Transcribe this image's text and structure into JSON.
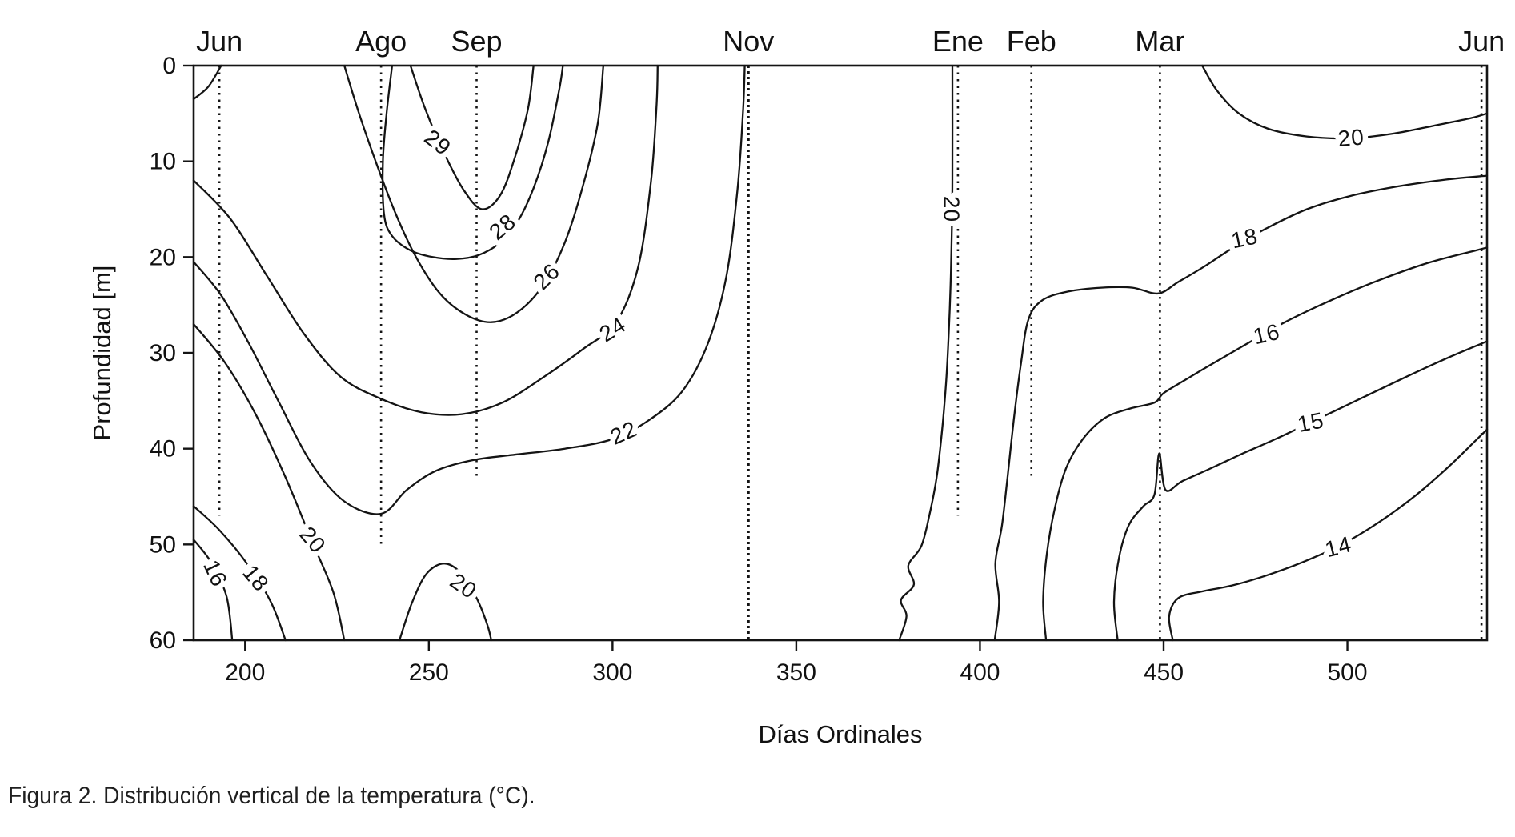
{
  "figure": {
    "caption": "Figura 2. Distribución vertical de la temperatura (°C)."
  },
  "chart_data": {
    "type": "contour",
    "title": "Distribución vertical de la temperatura (°C)",
    "xlabel": "Días Ordinales",
    "ylabel": "Profundidad [m]",
    "unit": "°C",
    "x_range": [
      186,
      538
    ],
    "y_range": [
      0,
      60
    ],
    "x_ticks": [
      200,
      250,
      300,
      350,
      400,
      450,
      500
    ],
    "y_ticks": [
      0,
      10,
      20,
      30,
      40,
      50,
      60
    ],
    "y_inverted": true,
    "grid": false,
    "frame": true,
    "line_color": "#141414",
    "sampling_dates": [
      {
        "label": "Jun",
        "day": 193,
        "line": [
          0,
          47
        ]
      },
      {
        "label": "Ago",
        "day": 237,
        "line": [
          0,
          50
        ]
      },
      {
        "label": "Sep",
        "day": 263,
        "line": [
          0,
          43
        ]
      },
      {
        "label": "Nov",
        "day": 337,
        "line": [
          0,
          60
        ],
        "weight": "heavy"
      },
      {
        "label": "Ene",
        "day": 394,
        "line": [
          0,
          47
        ]
      },
      {
        "label": "Feb",
        "day": 414,
        "line": [
          0,
          43
        ]
      },
      {
        "label": "Mar",
        "day": 449,
        "line": [
          0,
          60
        ]
      },
      {
        "label": "Jun",
        "day": 536.5,
        "line": [
          0,
          60
        ]
      }
    ],
    "contours": [
      {
        "level": 26,
        "text": "",
        "points": [
          [
            186,
            3.5
          ],
          [
            190,
            2.2
          ],
          [
            193.5,
            0
          ]
        ],
        "label": null
      },
      {
        "level": 16,
        "text": "16",
        "points": [
          [
            186,
            49.5
          ],
          [
            191,
            52
          ],
          [
            195,
            55.5
          ],
          [
            196.5,
            60
          ]
        ],
        "label": {
          "day": 192,
          "depth": 53,
          "rot": 65
        }
      },
      {
        "level": 18,
        "text": "18",
        "points": [
          [
            186,
            46
          ],
          [
            193,
            48.5
          ],
          [
            200.5,
            52
          ],
          [
            207,
            56
          ],
          [
            211,
            60
          ]
        ],
        "label": {
          "day": 203,
          "depth": 53.5,
          "rot": 50
        }
      },
      {
        "level": 20,
        "text": "20",
        "points": [
          [
            186,
            27
          ],
          [
            194.5,
            31
          ],
          [
            203,
            36.5
          ],
          [
            211,
            43
          ],
          [
            218,
            49.5
          ],
          [
            224,
            55
          ],
          [
            227,
            60
          ]
        ],
        "label": {
          "day": 218.5,
          "depth": 49.5,
          "rot": 50
        }
      },
      {
        "level": 22,
        "text": "22",
        "points": [
          [
            186,
            20.5
          ],
          [
            193.5,
            24
          ],
          [
            201,
            29
          ],
          [
            209,
            35
          ],
          [
            218,
            41.5
          ],
          [
            227,
            45.5
          ],
          [
            237,
            46.8
          ],
          [
            244,
            44.3
          ],
          [
            252,
            42.3
          ],
          [
            262,
            41.2
          ],
          [
            274,
            40.6
          ],
          [
            287,
            40
          ],
          [
            300,
            39
          ],
          [
            310,
            37
          ],
          [
            319,
            34
          ],
          [
            326,
            29
          ],
          [
            331,
            22
          ],
          [
            334,
            13
          ],
          [
            335.5,
            5
          ],
          [
            336,
            0
          ]
        ],
        "label": {
          "day": 303,
          "depth": 38.3,
          "rot": -24
        }
      },
      {
        "level": 24,
        "text": "24",
        "points": [
          [
            186,
            12
          ],
          [
            196,
            16
          ],
          [
            206,
            22
          ],
          [
            216,
            28
          ],
          [
            226,
            32.5
          ],
          [
            237,
            34.8
          ],
          [
            248,
            36.2
          ],
          [
            259,
            36.4
          ],
          [
            270,
            35.2
          ],
          [
            281,
            32.6
          ],
          [
            292,
            29.6
          ],
          [
            301,
            26.8
          ],
          [
            307,
            21
          ],
          [
            310.5,
            12
          ],
          [
            312,
            4
          ],
          [
            312.3,
            0
          ]
        ],
        "label": {
          "day": 300,
          "depth": 27.5,
          "rot": -32
        }
      },
      {
        "level": 26,
        "text": "26",
        "points": [
          [
            227,
            0
          ],
          [
            231,
            5
          ],
          [
            236,
            10.5
          ],
          [
            241,
            15.5
          ],
          [
            246.5,
            20
          ],
          [
            253,
            23.8
          ],
          [
            260,
            26
          ],
          [
            267,
            26.8
          ],
          [
            274,
            25.8
          ],
          [
            281,
            23
          ],
          [
            287,
            18.5
          ],
          [
            292,
            12.5
          ],
          [
            296,
            6
          ],
          [
            297.5,
            0
          ]
        ],
        "label": {
          "day": 282,
          "depth": 22,
          "rot": -45
        }
      },
      {
        "level": 28,
        "text": "28",
        "points": [
          [
            240,
            0
          ],
          [
            238.5,
            5
          ],
          [
            237.5,
            10
          ],
          [
            237.8,
            15.5
          ],
          [
            240,
            17.8
          ],
          [
            245,
            19.3
          ],
          [
            251,
            20
          ],
          [
            257.5,
            20.2
          ],
          [
            263.5,
            19.8
          ],
          [
            269,
            18.6
          ],
          [
            274,
            16.4
          ],
          [
            278.5,
            12.8
          ],
          [
            282.5,
            8
          ],
          [
            285.5,
            2.5
          ],
          [
            286.5,
            0
          ]
        ],
        "label": {
          "day": 270,
          "depth": 16.8,
          "rot": -40
        }
      },
      {
        "level": 29,
        "text": "29",
        "points": [
          [
            245,
            0
          ],
          [
            249,
            4.5
          ],
          [
            254,
            9
          ],
          [
            259.5,
            13
          ],
          [
            264.5,
            15
          ],
          [
            269.5,
            13.5
          ],
          [
            273.5,
            9.5
          ],
          [
            277,
            4.5
          ],
          [
            278.5,
            0
          ]
        ],
        "label": {
          "day": 252.5,
          "depth": 8,
          "rot": 38
        }
      },
      {
        "level": 20,
        "text": "20",
        "points": [
          [
            242,
            60
          ],
          [
            245.5,
            56
          ],
          [
            249.5,
            53
          ],
          [
            254.5,
            52
          ],
          [
            259.5,
            53.3
          ],
          [
            263.5,
            56
          ],
          [
            266,
            58.5
          ],
          [
            267,
            60
          ]
        ],
        "label": {
          "day": 259.5,
          "depth": 54.3,
          "rot": 35
        }
      },
      {
        "level": 20,
        "text": "20",
        "points": [
          [
            378,
            60
          ],
          [
            380,
            57.5
          ],
          [
            378.5,
            55.8
          ],
          [
            382,
            54.2
          ],
          [
            380.5,
            52.2
          ],
          [
            384,
            50.2
          ],
          [
            386.2,
            47
          ],
          [
            388.2,
            43
          ],
          [
            389.7,
            38
          ],
          [
            390.8,
            33
          ],
          [
            391.5,
            28
          ],
          [
            392,
            23
          ],
          [
            392.3,
            18
          ],
          [
            392.5,
            12
          ],
          [
            392.5,
            0
          ]
        ],
        "label": {
          "day": 392.4,
          "depth": 15,
          "rot": 90
        }
      },
      {
        "level": 18,
        "text": "18",
        "points": [
          [
            404,
            60
          ],
          [
            405.2,
            56
          ],
          [
            404.2,
            52
          ],
          [
            406,
            48
          ],
          [
            407.5,
            43
          ],
          [
            409.2,
            37
          ],
          [
            411.2,
            31
          ],
          [
            413.2,
            26.5
          ],
          [
            417,
            24.5
          ],
          [
            424,
            23.6
          ],
          [
            433,
            23.2
          ],
          [
            441.5,
            23.2
          ],
          [
            448.5,
            23.8
          ],
          [
            454,
            22.6
          ],
          [
            461,
            21
          ],
          [
            469,
            19
          ],
          [
            478,
            17
          ],
          [
            489,
            15
          ],
          [
            501,
            13.6
          ],
          [
            514,
            12.6
          ],
          [
            527,
            11.9
          ],
          [
            538,
            11.5
          ]
        ],
        "label": {
          "day": 472,
          "depth": 18,
          "rot": -12
        }
      },
      {
        "level": 16,
        "text": "16",
        "points": [
          [
            418,
            60
          ],
          [
            417.2,
            56
          ],
          [
            418.2,
            51
          ],
          [
            420.5,
            46
          ],
          [
            423.5,
            42
          ],
          [
            428,
            39
          ],
          [
            434,
            36.8
          ],
          [
            441,
            35.8
          ],
          [
            447.5,
            35.2
          ],
          [
            450,
            34.2
          ],
          [
            456,
            32.8
          ],
          [
            463,
            31.2
          ],
          [
            472,
            29.2
          ],
          [
            483,
            26.8
          ],
          [
            495,
            24.6
          ],
          [
            508,
            22.5
          ],
          [
            522,
            20.6
          ],
          [
            535,
            19.3
          ],
          [
            538,
            19
          ]
        ],
        "label": {
          "day": 478,
          "depth": 28,
          "rot": -13
        }
      },
      {
        "level": 15,
        "text": "15",
        "points": [
          [
            437.5,
            60
          ],
          [
            436.5,
            56
          ],
          [
            437.8,
            51.5
          ],
          [
            440.5,
            48
          ],
          [
            444.5,
            46
          ],
          [
            447.5,
            44.8
          ],
          [
            448.8,
            40.5
          ],
          [
            450.5,
            44.3
          ],
          [
            455,
            43.4
          ],
          [
            462,
            42.2
          ],
          [
            471,
            40.6
          ],
          [
            481,
            38.9
          ],
          [
            492,
            36.9
          ],
          [
            504,
            34.7
          ],
          [
            516,
            32.5
          ],
          [
            528,
            30.4
          ],
          [
            538,
            28.8
          ]
        ],
        "label": {
          "day": 490,
          "depth": 37.2,
          "rot": -11
        }
      },
      {
        "level": 14,
        "text": "14",
        "points": [
          [
            452.5,
            60
          ],
          [
            451.5,
            57.5
          ],
          [
            454,
            55.6
          ],
          [
            460.5,
            54.9
          ],
          [
            468.5,
            54.3
          ],
          [
            477.5,
            53.3
          ],
          [
            487.5,
            51.9
          ],
          [
            498,
            50.1
          ],
          [
            508.5,
            47.7
          ],
          [
            518.5,
            44.9
          ],
          [
            527.5,
            41.9
          ],
          [
            534.5,
            39.3
          ],
          [
            538,
            38
          ]
        ],
        "label": {
          "day": 497.5,
          "depth": 50.2,
          "rot": -14
        }
      },
      {
        "level": 20,
        "text": "20",
        "points": [
          [
            460.5,
            0
          ],
          [
            464.5,
            2.6
          ],
          [
            470.5,
            5
          ],
          [
            478.5,
            6.6
          ],
          [
            489,
            7.4
          ],
          [
            500.5,
            7.6
          ],
          [
            512.5,
            7.1
          ],
          [
            524.5,
            6.2
          ],
          [
            533.5,
            5.5
          ],
          [
            538,
            5
          ]
        ],
        "label": {
          "day": 501,
          "depth": 7.5,
          "rot": -5
        }
      }
    ]
  }
}
